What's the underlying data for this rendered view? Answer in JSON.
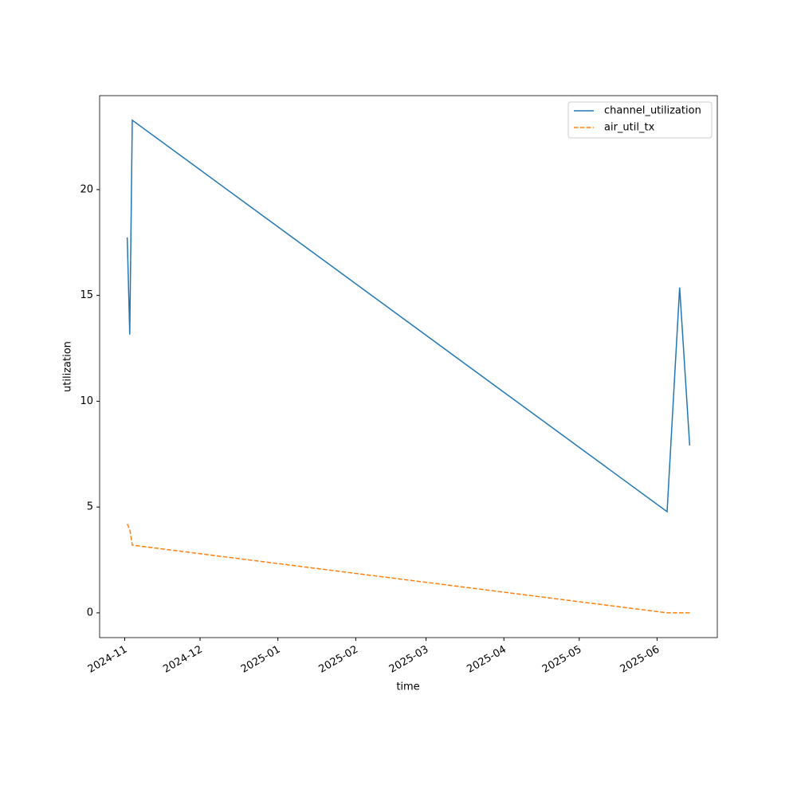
{
  "chart_data": {
    "type": "line",
    "x_label": "time",
    "y_label": "utilization",
    "x": [
      "2024-11-02",
      "2024-11-03",
      "2024-11-04",
      "2025-06-05",
      "2025-06-10",
      "2025-06-14"
    ],
    "series": [
      {
        "name": "channel_utilization",
        "color": "#1f77b4",
        "linestyle": "solid",
        "values": [
          17.74,
          13.15,
          23.28,
          4.78,
          15.37,
          7.91
        ]
      },
      {
        "name": "air_util_tx",
        "color": "#ff7f0e",
        "linestyle": "dashed",
        "values": [
          4.2,
          3.95,
          3.2,
          0,
          0,
          0
        ]
      }
    ],
    "xlim": [
      "2024-10-22",
      "2025-06-25"
    ],
    "xticks": [
      "2024-11",
      "2024-12",
      "2025-01",
      "2025-02",
      "2025-03",
      "2025-04",
      "2025-05",
      "2025-06"
    ],
    "ylim": [
      -1.17,
      24.44
    ],
    "yticks": [
      0,
      5,
      10,
      15,
      20
    ],
    "grid": false,
    "legend": "upper right"
  }
}
